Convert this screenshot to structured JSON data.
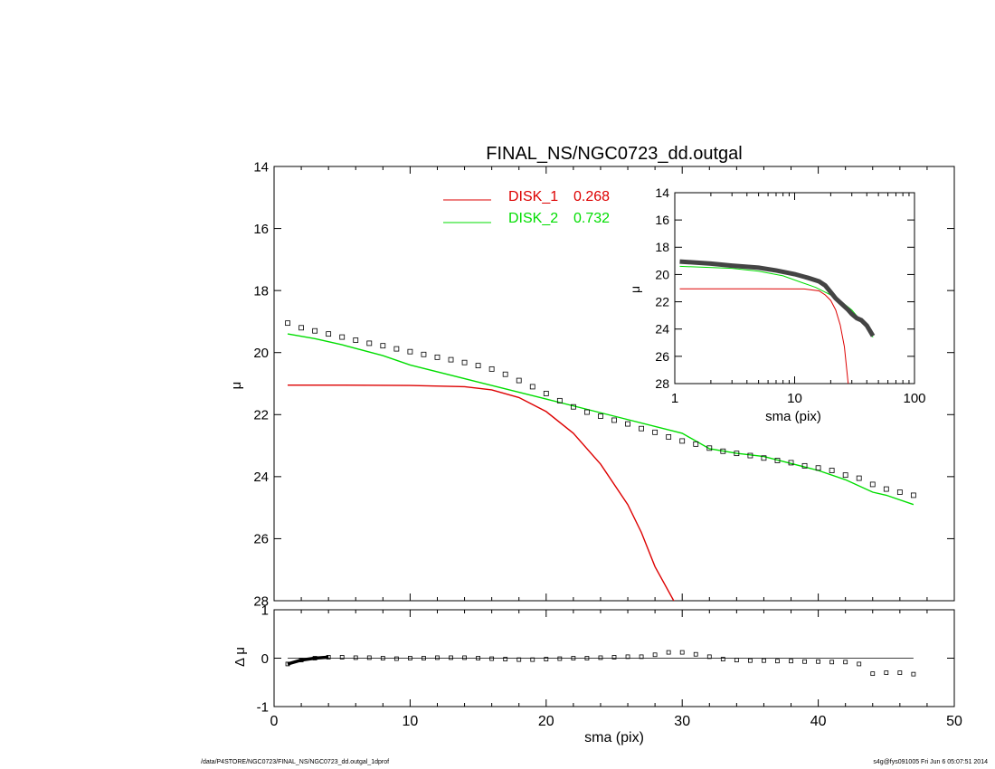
{
  "footer": {
    "left": "/data/P4STORE/NGC0723/FINAL_NS/NGC0723_dd.outgal_1dprof",
    "right": "s4g@fys091005  Fri Jun  6 05:07:51 2014"
  },
  "colors": {
    "disk1": "#dd0000",
    "disk2": "#00dd00",
    "data": "#000000",
    "axis": "#000000"
  },
  "chart_data": [
    {
      "id": "main",
      "type": "line",
      "title": "FINAL_NS/NGC0723_dd.outgal",
      "xlabel": "",
      "ylabel": "μ",
      "xlim": [
        0,
        50
      ],
      "ylim": [
        28,
        14
      ],
      "yticks": [
        14,
        16,
        18,
        20,
        22,
        24,
        26,
        28
      ],
      "ytick_labels": [
        "14",
        "16",
        "18",
        "20",
        "22",
        "24",
        "26",
        "28"
      ],
      "legend": [
        {
          "label": "DISK_1",
          "value": "0.268",
          "color": "#dd0000"
        },
        {
          "label": "DISK_2",
          "value": "0.732",
          "color": "#00dd00"
        }
      ],
      "legend_position": "top-center",
      "series": [
        {
          "name": "DISK_1",
          "color": "#dd0000",
          "x": [
            1,
            5,
            10,
            14,
            16,
            18,
            20,
            22,
            24,
            26,
            27,
            28,
            29.5
          ],
          "y": [
            21.05,
            21.05,
            21.06,
            21.1,
            21.2,
            21.45,
            21.9,
            22.6,
            23.6,
            24.9,
            25.8,
            26.9,
            28.1
          ]
        },
        {
          "name": "DISK_2",
          "color": "#00dd00",
          "x": [
            1,
            3,
            5,
            8,
            10,
            15,
            20,
            25,
            30,
            32,
            34,
            36,
            40,
            42,
            44,
            45,
            47
          ],
          "y": [
            19.4,
            19.55,
            19.75,
            20.1,
            20.4,
            20.95,
            21.5,
            22.05,
            22.6,
            23.1,
            23.25,
            23.35,
            23.8,
            24.1,
            24.5,
            24.6,
            24.9
          ]
        },
        {
          "name": "data",
          "color": "#000000",
          "marker": "square",
          "x": [
            1,
            2,
            3,
            4,
            5,
            6,
            7,
            8,
            9,
            10,
            11,
            12,
            13,
            14,
            15,
            16,
            17,
            18,
            19,
            20,
            21,
            22,
            23,
            24,
            25,
            26,
            27,
            28,
            29,
            30,
            31,
            32,
            33,
            34,
            35,
            36,
            37,
            38,
            39,
            40,
            41,
            42,
            43,
            44,
            45,
            46,
            47
          ],
          "y": [
            19.05,
            19.2,
            19.3,
            19.4,
            19.5,
            19.6,
            19.7,
            19.78,
            19.88,
            19.97,
            20.06,
            20.15,
            20.23,
            20.32,
            20.42,
            20.53,
            20.7,
            20.9,
            21.1,
            21.32,
            21.55,
            21.75,
            21.92,
            22.05,
            22.18,
            22.3,
            22.45,
            22.57,
            22.72,
            22.85,
            22.95,
            23.08,
            23.18,
            23.25,
            23.32,
            23.4,
            23.48,
            23.55,
            23.65,
            23.72,
            23.8,
            23.95,
            24.05,
            24.25,
            24.4,
            24.5,
            24.6
          ]
        }
      ]
    },
    {
      "id": "inset",
      "type": "line",
      "title": "",
      "xlabel": "sma (pix)",
      "ylabel": "μ",
      "xscale": "log",
      "xlim": [
        1,
        100
      ],
      "ylim": [
        28,
        14
      ],
      "xticks": [
        1,
        10,
        100
      ],
      "xtick_labels": [
        "1",
        "10",
        "100"
      ],
      "yticks": [
        14,
        16,
        18,
        20,
        22,
        24,
        26,
        28
      ],
      "ytick_labels": [
        "14",
        "16",
        "18",
        "20",
        "22",
        "24",
        "26",
        "28"
      ],
      "series": [
        {
          "name": "DISK_1",
          "color": "#dd0000",
          "x": [
            1.1,
            5,
            12,
            16,
            18,
            20,
            22,
            24,
            26,
            28
          ],
          "y": [
            21.05,
            21.05,
            21.06,
            21.2,
            21.5,
            21.9,
            22.6,
            23.7,
            25.3,
            28
          ]
        },
        {
          "name": "DISK_2",
          "color": "#00dd00",
          "x": [
            1.1,
            3,
            5,
            8,
            10,
            15,
            20,
            25,
            30,
            35,
            40,
            45
          ],
          "y": [
            19.4,
            19.55,
            19.75,
            20.1,
            20.4,
            20.95,
            21.5,
            22.05,
            22.6,
            23.3,
            23.8,
            24.6
          ]
        },
        {
          "name": "data",
          "color": "#000000",
          "x": [
            1.1,
            2,
            3,
            5,
            7,
            10,
            13,
            16,
            18,
            20,
            22,
            25,
            28,
            30,
            33,
            36,
            40,
            45
          ],
          "y": [
            19.05,
            19.2,
            19.35,
            19.5,
            19.7,
            19.97,
            20.25,
            20.5,
            20.8,
            21.3,
            21.75,
            22.2,
            22.6,
            22.9,
            23.2,
            23.35,
            23.75,
            24.5
          ]
        }
      ]
    },
    {
      "id": "residual",
      "type": "scatter",
      "title": "",
      "xlabel": "sma (pix)",
      "ylabel": "Δ μ",
      "xlim": [
        0,
        50
      ],
      "ylim": [
        -1,
        1
      ],
      "xticks": [
        0,
        10,
        20,
        30,
        40,
        50
      ],
      "xtick_labels": [
        "0",
        "10",
        "20",
        "30",
        "40",
        "50"
      ],
      "yticks": [
        -1,
        0,
        1
      ],
      "ytick_labels": [
        "-1",
        "0",
        "1"
      ],
      "zero_line": true,
      "series": [
        {
          "name": "residual",
          "color": "#000000",
          "marker": "square",
          "x": [
            1,
            2,
            3,
            4,
            5,
            6,
            7,
            8,
            9,
            10,
            11,
            12,
            13,
            14,
            15,
            16,
            17,
            18,
            19,
            20,
            21,
            22,
            23,
            24,
            25,
            26,
            27,
            28,
            29,
            30,
            31,
            32,
            33,
            34,
            35,
            36,
            37,
            38,
            39,
            40,
            41,
            42,
            43,
            44,
            45,
            46,
            47
          ],
          "y": [
            -0.12,
            -0.04,
            0.0,
            0.02,
            0.02,
            0.01,
            0.01,
            0.0,
            -0.01,
            0.0,
            0.0,
            0.01,
            0.01,
            0.01,
            0.0,
            -0.01,
            -0.02,
            -0.03,
            -0.03,
            -0.02,
            -0.01,
            0.0,
            0.0,
            0.01,
            0.02,
            0.03,
            0.03,
            0.07,
            0.12,
            0.12,
            0.08,
            0.03,
            -0.02,
            -0.04,
            -0.05,
            -0.05,
            -0.06,
            -0.06,
            -0.07,
            -0.07,
            -0.08,
            -0.08,
            -0.12,
            -0.32,
            -0.3,
            -0.3,
            -0.33
          ]
        }
      ]
    }
  ]
}
